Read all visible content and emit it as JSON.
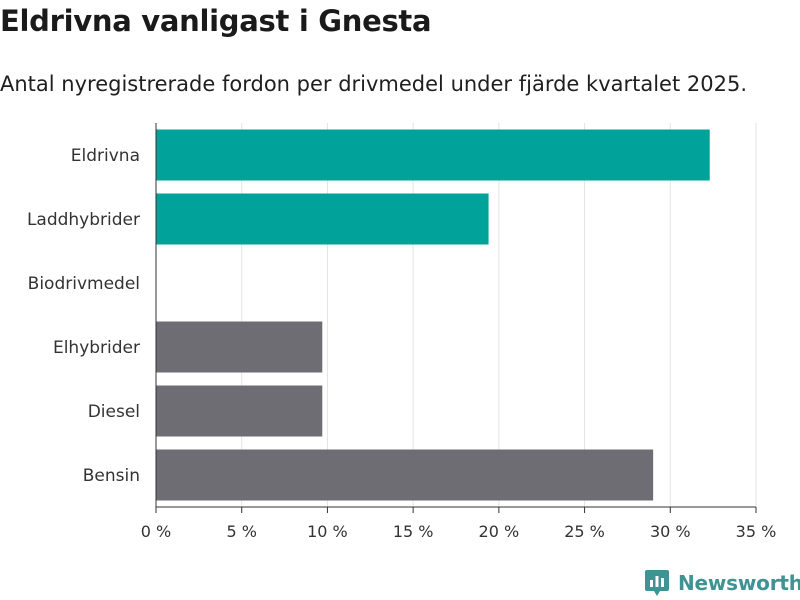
{
  "brand": "Newsworthy",
  "colors": {
    "highlight": "#00a29a",
    "muted": "#6e6d74",
    "grid": "#e3e3e3",
    "brand": "#3f9393"
  },
  "chart_data": {
    "type": "bar",
    "orientation": "horizontal",
    "title": "Eldrivna vanligast i Gnesta",
    "subtitle": "Antal nyregistrerade fordon per drivmedel under fjärde kvartalet 2025.",
    "xlabel": "",
    "ylabel": "",
    "xlim": [
      0,
      35
    ],
    "ticks": [
      0,
      5,
      10,
      15,
      20,
      25,
      30,
      35
    ],
    "tick_labels": [
      "0 %",
      "5 %",
      "10 %",
      "15 %",
      "20 %",
      "25 %",
      "30 %",
      "35 %"
    ],
    "categories": [
      "Eldrivna",
      "Laddhybrider",
      "Biodrivmedel",
      "Elhybrider",
      "Diesel",
      "Bensin"
    ],
    "values": [
      32.3,
      19.4,
      0,
      9.7,
      9.7,
      29.0
    ],
    "groups": [
      "highlight",
      "highlight",
      "highlight",
      "muted",
      "muted",
      "muted"
    ],
    "grid": true
  }
}
